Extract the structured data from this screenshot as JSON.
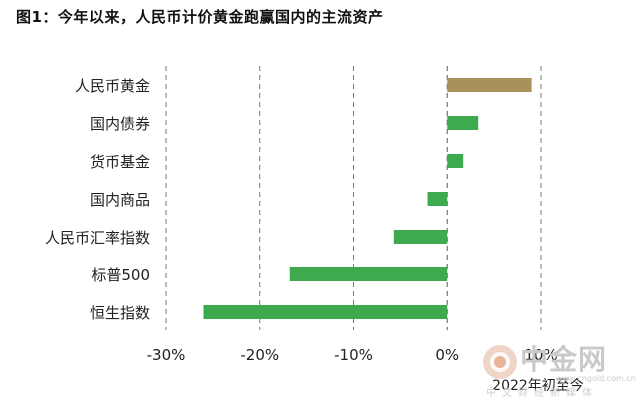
{
  "title": "图1：今年以来，人民币计价黄金跑赢国内的主流资产",
  "chart_data": {
    "type": "bar",
    "orientation": "horizontal",
    "categories": [
      "人民币黄金",
      "国内债券",
      "货币基金",
      "国内商品",
      "人民币汇率指数",
      "标普500",
      "恒生指数"
    ],
    "values": [
      9.0,
      3.3,
      1.7,
      -2.1,
      -5.7,
      -16.8,
      -26.0
    ],
    "bar_colors": [
      "#A99259",
      "#3DAA50",
      "#3DAA50",
      "#3DAA50",
      "#3DAA50",
      "#3DAA50",
      "#3DAA50"
    ],
    "xlim": [
      -30,
      10
    ],
    "xticks": [
      -30,
      -20,
      -10,
      0,
      10
    ],
    "xtick_labels": [
      "-30%",
      "-20%",
      "-10%",
      "0%",
      "10%"
    ],
    "xlabel": "2022年初至今",
    "grid": "vertical dashed"
  },
  "watermark": {
    "name": "中金网",
    "url": "www.cngold.com.cn",
    "sub": "中文财经新媒体"
  }
}
